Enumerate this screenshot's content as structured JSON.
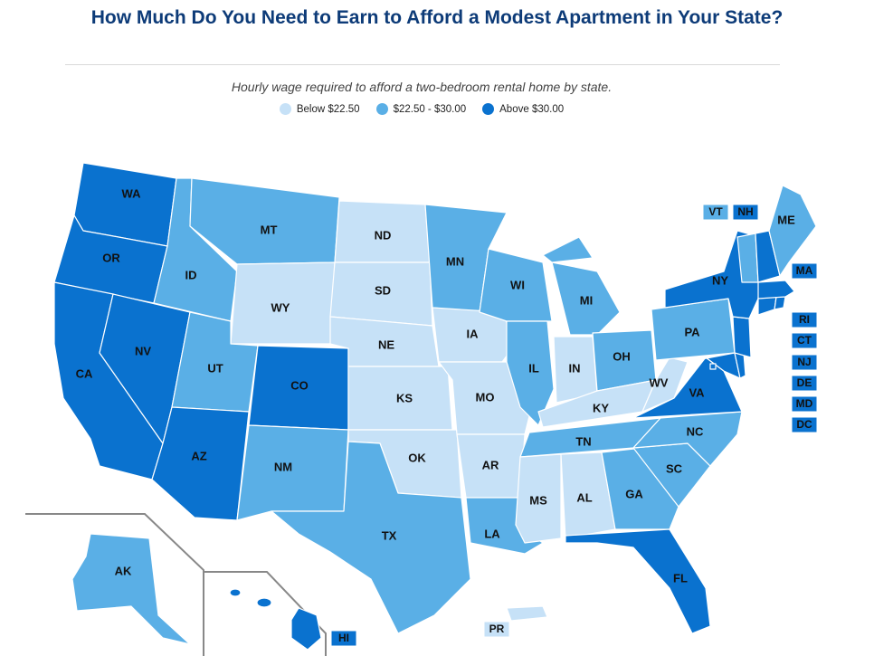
{
  "header": {
    "title": "How Much Do You Need to Earn to Afford a Modest Apartment in Your State?",
    "subtitle": "Hourly wage required to afford a two-bedroom rental home by state."
  },
  "legend": [
    {
      "label": "Below $22.50",
      "color": "#c6e1f7"
    },
    {
      "label": "$22.50 - $30.00",
      "color": "#5aafe6"
    },
    {
      "label": "Above $30.00",
      "color": "#0a72cf"
    }
  ],
  "categories": {
    "low": "Below $22.50",
    "mid": "$22.50 - $30.00",
    "high": "Above $30.00"
  },
  "states": {
    "WA": "high",
    "OR": "high",
    "CA": "high",
    "NV": "high",
    "ID": "mid",
    "MT": "mid",
    "WY": "low",
    "UT": "mid",
    "AZ": "high",
    "CO": "high",
    "NM": "mid",
    "ND": "low",
    "SD": "low",
    "NE": "low",
    "KS": "low",
    "OK": "low",
    "TX": "mid",
    "MN": "mid",
    "IA": "low",
    "MO": "low",
    "AR": "low",
    "LA": "mid",
    "WI": "mid",
    "IL": "mid",
    "MS": "low",
    "AL": "low",
    "MI": "mid",
    "IN": "low",
    "KY": "low",
    "TN": "mid",
    "OH": "mid",
    "WV": "low",
    "GA": "mid",
    "FL": "high",
    "SC": "mid",
    "NC": "mid",
    "VA": "high",
    "PA": "mid",
    "NY": "high",
    "ME": "mid",
    "VT": "mid",
    "NH": "high",
    "MA": "high",
    "RI": "high",
    "CT": "high",
    "NJ": "high",
    "DE": "high",
    "MD": "high",
    "DC": "high",
    "AK": "mid",
    "HI": "high",
    "PR": "low"
  }
}
